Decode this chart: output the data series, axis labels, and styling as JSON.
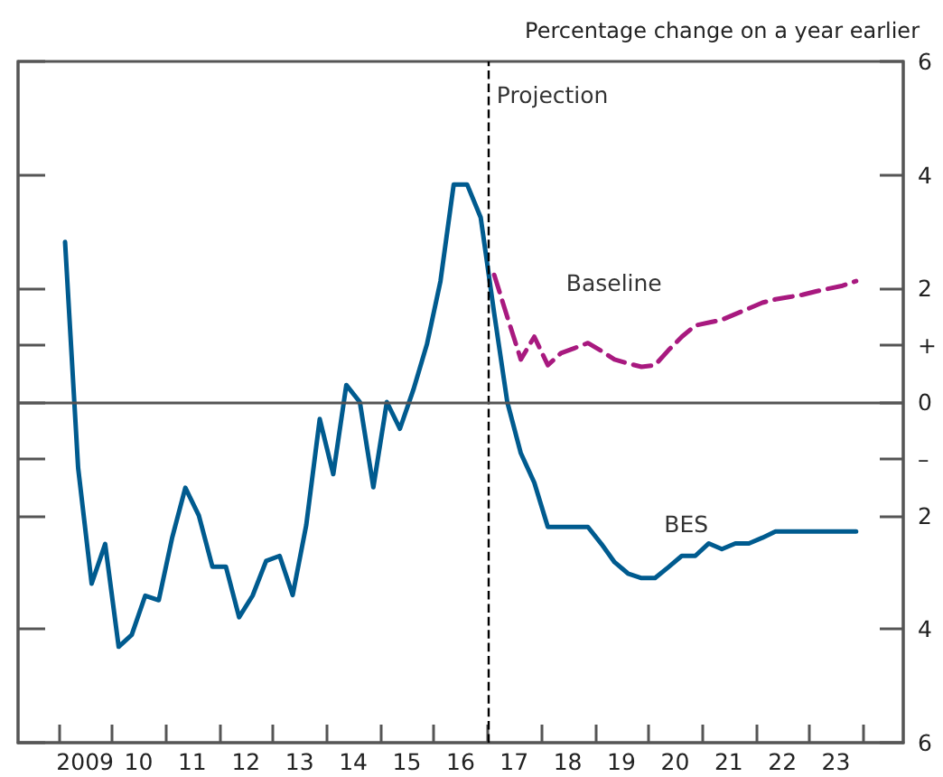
{
  "chart_data": {
    "type": "line",
    "ylabel": "Percentage change on a year earlier",
    "series": [
      {
        "name": "BES",
        "color": "#005b8f",
        "line_style": "solid",
        "x": [
          "2009-02-15",
          "2009-05-15",
          "2009-08-15",
          "2009-11-15",
          "2010-02-15",
          "2010-05-15",
          "2010-08-15",
          "2010-11-15",
          "2011-02-15",
          "2011-05-15",
          "2011-08-15",
          "2011-11-15",
          "2012-02-15",
          "2012-05-15",
          "2012-08-15",
          "2012-11-15",
          "2013-02-15",
          "2013-05-15",
          "2013-08-15",
          "2013-11-15",
          "2014-02-15",
          "2014-05-15",
          "2014-08-15",
          "2014-11-15",
          "2015-02-15",
          "2015-05-15",
          "2015-08-15",
          "2015-11-15",
          "2016-02-15",
          "2016-05-15",
          "2016-08-15",
          "2016-11-15",
          "2017-02-15",
          "2017-05-15",
          "2017-08-15",
          "2017-11-15",
          "2018-02-15",
          "2018-05-15",
          "2018-08-15",
          "2018-11-15",
          "2019-02-15",
          "2019-05-15",
          "2019-08-15",
          "2019-11-15",
          "2020-02-15",
          "2020-05-15",
          "2020-08-15",
          "2020-11-15",
          "2021-02-15",
          "2021-05-15",
          "2021-08-15",
          "2021-11-15",
          "2022-02-15",
          "2022-05-15",
          "2022-08-15",
          "2022-11-15",
          "2023-02-15",
          "2023-05-15",
          "2023-08-15",
          "2023-11-15"
        ],
        "values": [
          2.82,
          -1.16,
          -3.2,
          -2.5,
          -4.31,
          -4.1,
          -3.41,
          -3.49,
          -2.38,
          -1.51,
          -2.0,
          -2.9,
          -2.9,
          -3.79,
          -3.41,
          -2.8,
          -2.71,
          -3.4,
          -2.17,
          -0.3,
          -1.27,
          0.3,
          0.0,
          -1.5,
          0.0,
          -0.47,
          0.22,
          1.02,
          2.13,
          3.83,
          3.83,
          3.25,
          1.56,
          0.0,
          -0.9,
          -1.42,
          -2.2,
          -2.2,
          -2.2,
          -2.2,
          -2.5,
          -2.82,
          -3.02,
          -3.1,
          -3.1,
          -2.91,
          -2.71,
          -2.71,
          -2.49,
          -2.59,
          -2.49,
          -2.49,
          -2.39,
          -2.28,
          -2.28,
          -2.28,
          -2.28,
          -2.28,
          -2.28,
          -2.28
        ]
      },
      {
        "name": "Baseline",
        "color": "#a8197f",
        "line_style": "dashed",
        "x": [
          "2017-02-15",
          "2017-05-15",
          "2017-08-15",
          "2017-11-15",
          "2018-02-15",
          "2018-05-15",
          "2018-08-15",
          "2018-11-15",
          "2019-02-15",
          "2019-05-15",
          "2019-08-15",
          "2019-11-15",
          "2020-02-15",
          "2020-05-15",
          "2020-08-15",
          "2020-11-15",
          "2021-02-15",
          "2021-05-15",
          "2021-08-15",
          "2021-11-15",
          "2022-02-15",
          "2022-05-15",
          "2022-08-15",
          "2022-11-15",
          "2023-02-15",
          "2023-05-15",
          "2023-08-15",
          "2023-11-15"
        ],
        "values": [
          2.24,
          1.5,
          0.75,
          1.15,
          0.65,
          0.86,
          0.95,
          1.04,
          0.9,
          0.75,
          0.68,
          0.62,
          0.65,
          0.91,
          1.15,
          1.35,
          1.4,
          1.45,
          1.55,
          1.65,
          1.75,
          1.81,
          1.85,
          1.89,
          1.95,
          2.0,
          2.05,
          2.13
        ]
      }
    ],
    "xlim": [
      "2008-04-01",
      "2024-10-01"
    ],
    "xticks": [
      {
        "value": "2009-01-01",
        "label": null
      },
      {
        "value": "2010-01-01",
        "label": null
      },
      {
        "value": "2011-01-01",
        "label": null
      },
      {
        "value": "2012-01-01",
        "label": null
      },
      {
        "value": "2013-01-01",
        "label": null
      },
      {
        "value": "2014-01-01",
        "label": null
      },
      {
        "value": "2015-01-01",
        "label": null
      },
      {
        "value": "2016-01-01",
        "label": null
      },
      {
        "value": "2017-01-01",
        "label": null
      },
      {
        "value": "2018-01-01",
        "label": null
      },
      {
        "value": "2019-01-01",
        "label": null
      },
      {
        "value": "2020-01-01",
        "label": null
      },
      {
        "value": "2021-01-01",
        "label": null
      },
      {
        "value": "2022-01-01",
        "label": null
      },
      {
        "value": "2023-01-01",
        "label": null
      },
      {
        "value": "2024-01-01",
        "label": null
      },
      {
        "value": "2009-07-01",
        "label": "2009"
      },
      {
        "value": "2010-07-01",
        "label": "10"
      },
      {
        "value": "2011-07-01",
        "label": "11"
      },
      {
        "value": "2012-07-01",
        "label": "12"
      },
      {
        "value": "2013-07-01",
        "label": "13"
      },
      {
        "value": "2014-07-01",
        "label": "14"
      },
      {
        "value": "2015-07-01",
        "label": "15"
      },
      {
        "value": "2016-07-01",
        "label": "16"
      },
      {
        "value": "2017-07-01",
        "label": "17"
      },
      {
        "value": "2018-07-01",
        "label": "18"
      },
      {
        "value": "2019-07-01",
        "label": "19"
      },
      {
        "value": "2020-07-01",
        "label": "20"
      },
      {
        "value": "2021-07-01",
        "label": "21"
      },
      {
        "value": "2022-07-01",
        "label": "22"
      },
      {
        "value": "2023-07-01",
        "label": "23"
      }
    ],
    "ylim": [
      -6,
      6
    ],
    "yticks": [
      {
        "value": -6,
        "label": "6"
      },
      {
        "value": -4,
        "label": "4"
      },
      {
        "value": -2,
        "label": "2"
      },
      {
        "value": -1,
        "label": "–"
      },
      0,
      {
        "value": 1,
        "label": "+"
      },
      2,
      4,
      6
    ],
    "ref_lines": [
      {
        "axis": "x",
        "value": "2017-01-01",
        "label": "Projection",
        "color": "#000000",
        "line_style": "dashed"
      },
      {
        "axis": "y",
        "value": 0,
        "color": "#555555",
        "line_style": "solid"
      }
    ],
    "grid": false,
    "legend": false,
    "marker": "none"
  }
}
